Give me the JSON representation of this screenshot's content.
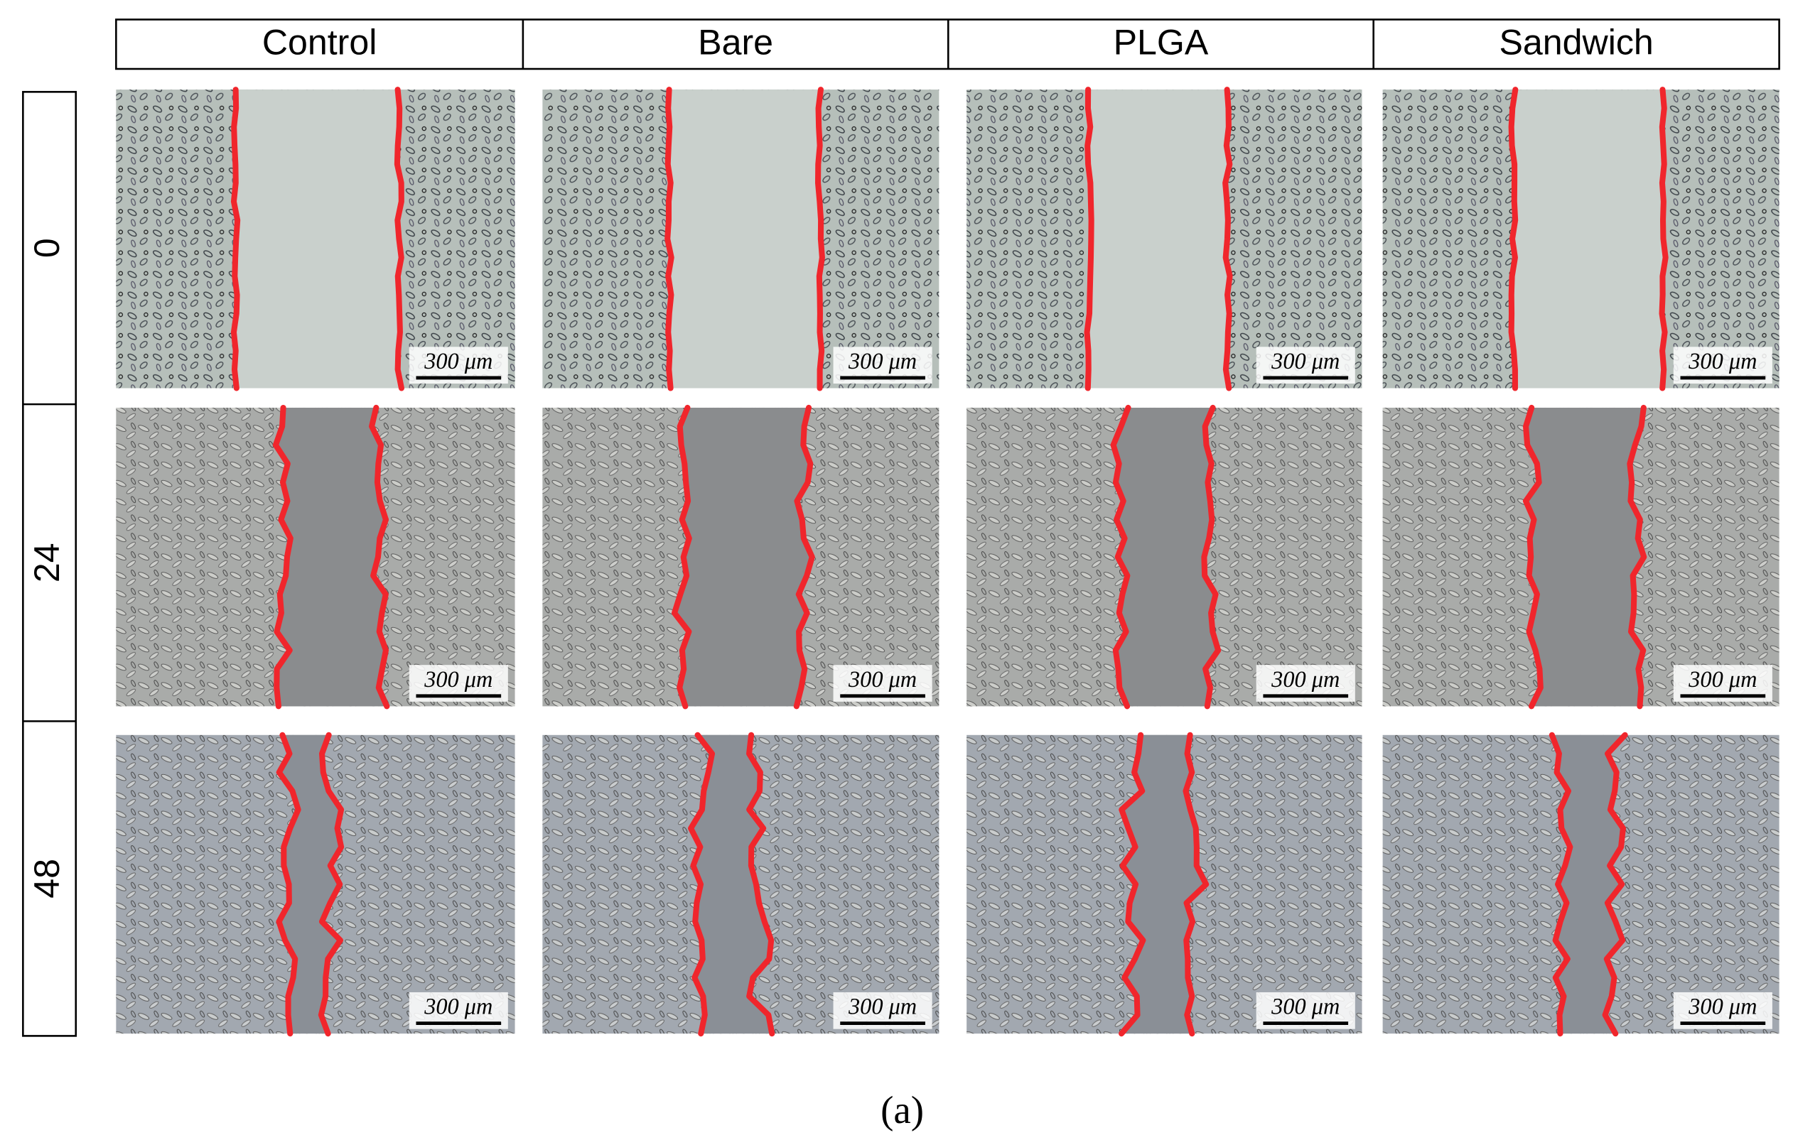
{
  "figure": {
    "columns": [
      "Control",
      "Bare",
      "PLGA",
      "Sandwich"
    ],
    "rows": [
      "0",
      "24",
      "48"
    ],
    "scale_bar": "300 μm",
    "caption": "(a)"
  }
}
